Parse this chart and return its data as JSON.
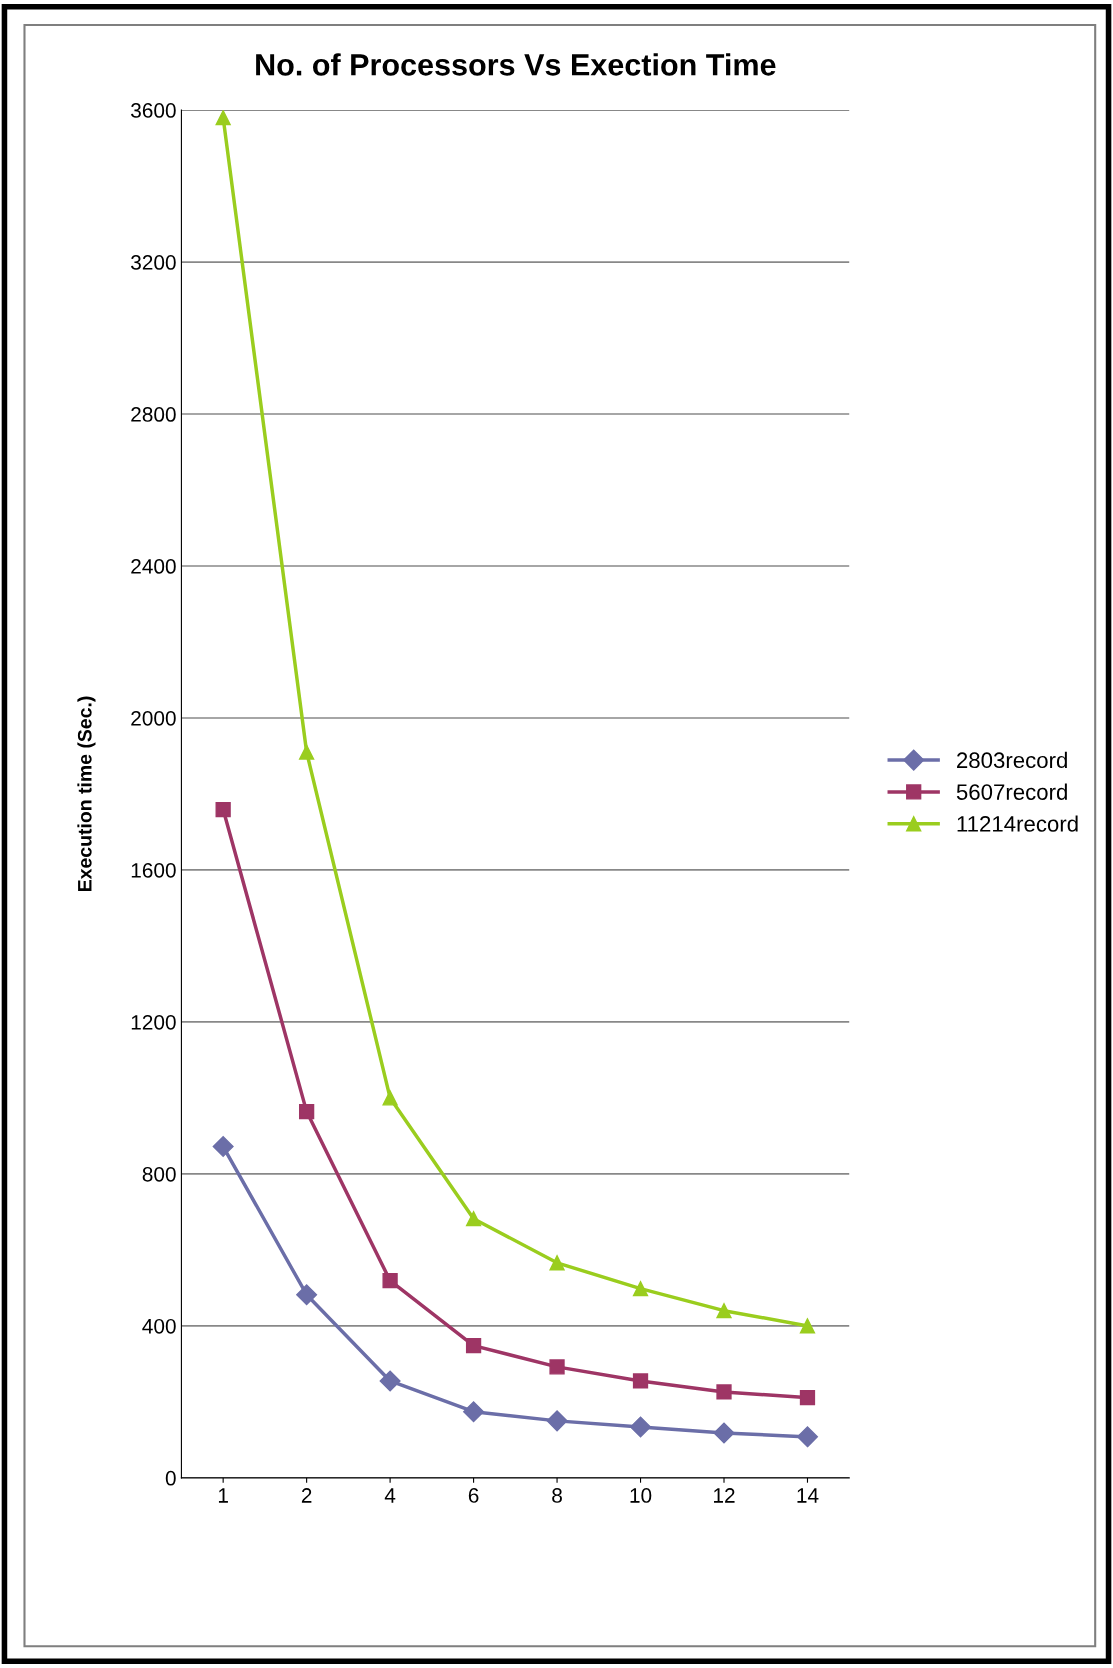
{
  "chart_data": {
    "type": "line",
    "title": "No. of Processors Vs Exection Time",
    "ylabel": "Execution time (Sec.)",
    "categories": [
      "1",
      "2",
      "4",
      "6",
      "8",
      "10",
      "12",
      "14"
    ],
    "series": [
      {
        "name": "2803record",
        "color": "#6b6ea8",
        "marker": "diamond",
        "values": [
          872,
          482,
          255,
          174,
          150,
          134,
          118,
          108
        ]
      },
      {
        "name": "5607record",
        "color": "#9e3565",
        "marker": "square",
        "values": [
          1759,
          964,
          519,
          348,
          292,
          255,
          226,
          211
        ]
      },
      {
        "name": "11214record",
        "color": "#9acd1e",
        "marker": "triangle",
        "values": [
          3580,
          1910,
          1000,
          682,
          566,
          498,
          440,
          400
        ]
      }
    ],
    "ylim": [
      0,
      3600
    ],
    "yticks": [
      0,
      400,
      800,
      1200,
      1600,
      2000,
      2400,
      2800,
      3200,
      3600
    ],
    "grid": "y",
    "legend": "right",
    "line_style": "solid"
  }
}
